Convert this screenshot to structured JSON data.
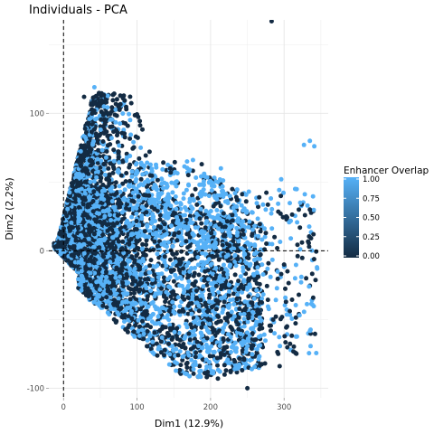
{
  "chart_data": {
    "type": "scatter",
    "title": "Individuals - PCA",
    "xlabel": "Dim1 (12.9%)",
    "ylabel": "Dim2 (2.2%)",
    "xlim": [
      -20,
      360
    ],
    "ylim": [
      -107,
      168
    ],
    "x_ticks": [
      0,
      100,
      200,
      300
    ],
    "y_ticks": [
      -100,
      0,
      100
    ],
    "x_tick_labels": [
      "0",
      "100",
      "200",
      "300"
    ],
    "y_tick_labels": [
      "-100",
      "0",
      "100"
    ],
    "x_minor_ticks": [
      -50,
      50,
      150,
      250,
      350
    ],
    "y_minor_ticks": [
      -50,
      50,
      150
    ],
    "reference_lines": {
      "x": 0,
      "y": 0
    },
    "grid": true,
    "legend": {
      "title": "Enhancer Overlap",
      "placement": "right",
      "scale": "continuous",
      "range": [
        0,
        1
      ],
      "tick_values": [
        1.0,
        0.75,
        0.5,
        0.25,
        0.0
      ],
      "tick_labels": [
        "1.00",
        "0.75",
        "0.50",
        "0.25",
        "0.00"
      ],
      "low_color": "#132B43",
      "high_color": "#56B1F7"
    },
    "series": [
      {
        "values_encoding": "color = Enhancer Overlap (0 to 1)",
        "points": [
          {
            "x": 283,
            "y": 167,
            "v": 0.0
          },
          {
            "x": 42,
            "y": 119,
            "v": 1.0
          },
          {
            "x": 335,
            "y": 80,
            "v": 1.0
          },
          {
            "x": 341,
            "y": 76,
            "v": 1.0
          },
          {
            "x": 327,
            "y": 77,
            "v": 1.0
          },
          {
            "x": 188,
            "y": 63,
            "v": 0.0
          },
          {
            "x": 168,
            "y": 65,
            "v": 1.0
          },
          {
            "x": 176,
            "y": 66,
            "v": 1.0
          },
          {
            "x": 214,
            "y": 60,
            "v": 1.0
          },
          {
            "x": 210,
            "y": 50,
            "v": 1.0
          },
          {
            "x": 296,
            "y": 52,
            "v": 1.0
          },
          {
            "x": 315,
            "y": 45,
            "v": 1.0
          },
          {
            "x": 335,
            "y": 30,
            "v": 0.0
          },
          {
            "x": 322,
            "y": 35,
            "v": 1.0
          },
          {
            "x": 252,
            "y": 43,
            "v": 1.0
          },
          {
            "x": 235,
            "y": 39,
            "v": 0.0
          },
          {
            "x": 275,
            "y": 30,
            "v": 1.0
          },
          {
            "x": 303,
            "y": 25,
            "v": 0.0
          },
          {
            "x": 340,
            "y": 12,
            "v": 0.0
          },
          {
            "x": 334,
            "y": 3,
            "v": 0.0
          },
          {
            "x": 345,
            "y": -13,
            "v": 1.0
          },
          {
            "x": 315,
            "y": -20,
            "v": 1.0
          },
          {
            "x": 320,
            "y": -32,
            "v": 0.0
          },
          {
            "x": 304,
            "y": -55,
            "v": 0.0
          },
          {
            "x": 287,
            "y": -60,
            "v": 1.0
          },
          {
            "x": 292,
            "y": -75,
            "v": 0.0
          },
          {
            "x": 294,
            "y": -84,
            "v": 0.0
          },
          {
            "x": 250,
            "y": -100,
            "v": 0.0
          },
          {
            "x": 233,
            "y": -86,
            "v": 1.0
          },
          {
            "x": 192,
            "y": -89,
            "v": 0.0
          },
          {
            "x": 210,
            "y": -93,
            "v": 0.0
          },
          {
            "x": 180,
            "y": -83,
            "v": 1.0
          },
          {
            "x": 156,
            "y": -76,
            "v": 0.0
          },
          {
            "x": 130,
            "y": -70,
            "v": 1.0
          },
          {
            "x": 274,
            "y": -82,
            "v": 0.0
          },
          {
            "x": 264,
            "y": -43,
            "v": 0.0
          },
          {
            "x": 246,
            "y": -55,
            "v": 1.0
          },
          {
            "x": 222,
            "y": -70,
            "v": 0.0
          },
          {
            "x": 105,
            "y": 75,
            "v": 1.0
          },
          {
            "x": 117,
            "y": 72,
            "v": 0.0
          },
          {
            "x": 145,
            "y": 60,
            "v": 0.0
          },
          {
            "x": 198,
            "y": 40,
            "v": 1.0
          },
          {
            "x": 185,
            "y": 48,
            "v": 1.0
          },
          {
            "x": 230,
            "y": 22,
            "v": 0.0
          },
          {
            "x": 260,
            "y": 18,
            "v": 1.0
          },
          {
            "x": 287,
            "y": 10,
            "v": 0.0
          },
          {
            "x": 270,
            "y": -10,
            "v": 1.0
          },
          {
            "x": 300,
            "y": -10,
            "v": 0.0
          },
          {
            "x": 330,
            "y": -20,
            "v": 0.0
          },
          {
            "x": 28,
            "y": 112,
            "v": 0.0
          },
          {
            "x": 55,
            "y": 105,
            "v": 1.0
          },
          {
            "x": 63,
            "y": 100,
            "v": 0.0
          }
        ]
      }
    ]
  }
}
